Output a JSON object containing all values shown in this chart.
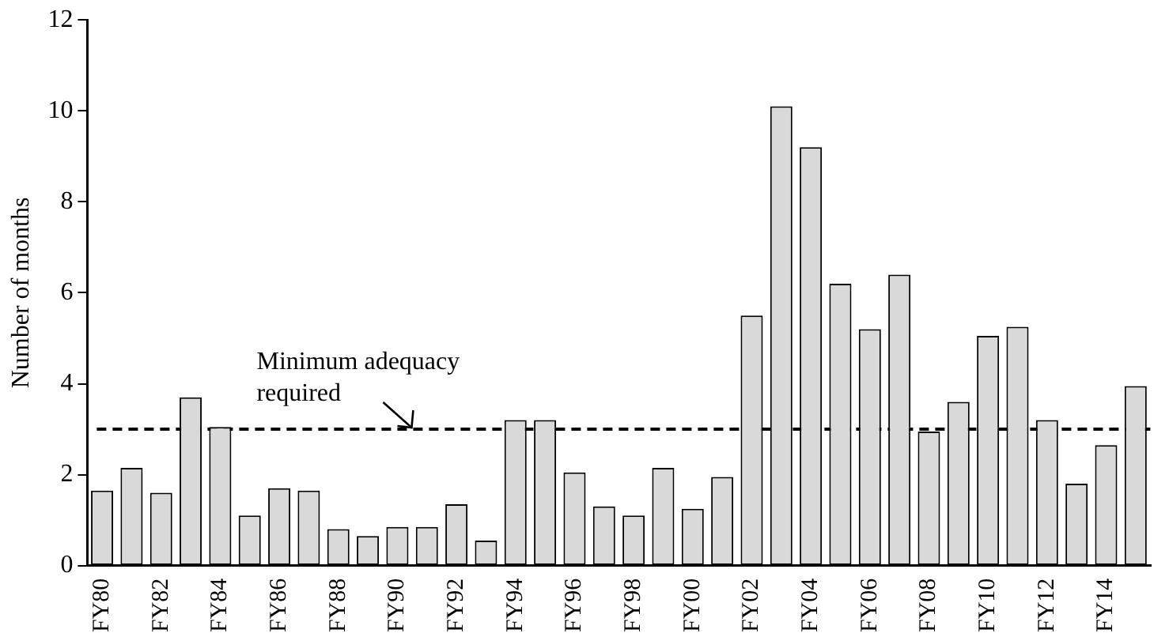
{
  "chart_data": {
    "type": "bar",
    "ylabel": "Number of months",
    "categories": [
      "FY80",
      null,
      "FY82",
      null,
      "FY84",
      null,
      "FY86",
      null,
      "FY88",
      null,
      "FY90",
      null,
      "FY92",
      null,
      "FY94",
      null,
      "FY96",
      null,
      "FY98",
      null,
      "FY00",
      null,
      "FY02",
      null,
      "FY04",
      null,
      "FY06",
      null,
      "FY08",
      null,
      "FY10",
      null,
      "FY12",
      null,
      "FY14",
      null
    ],
    "values": [
      1.65,
      2.15,
      1.6,
      3.7,
      3.05,
      1.1,
      1.7,
      1.65,
      0.8,
      0.65,
      0.85,
      0.85,
      1.35,
      0.55,
      3.2,
      3.2,
      2.05,
      1.3,
      1.1,
      2.15,
      1.25,
      1.95,
      5.5,
      10.1,
      9.2,
      6.2,
      5.2,
      6.4,
      2.95,
      3.6,
      5.05,
      5.25,
      3.2,
      1.8,
      2.65,
      3.95
    ],
    "color": "#d9d9d9",
    "ylim": [
      0,
      12
    ],
    "yticks": [
      0,
      2,
      4,
      6,
      8,
      10,
      12
    ],
    "grid": false,
    "legend": false,
    "ref_lines": [
      {
        "axis": "y",
        "value": 3,
        "color": "#000000",
        "line_style": "dashed"
      }
    ],
    "annotations": [
      {
        "text": "Minimum adequacy required",
        "x": "FY90",
        "y": 3
      }
    ]
  }
}
